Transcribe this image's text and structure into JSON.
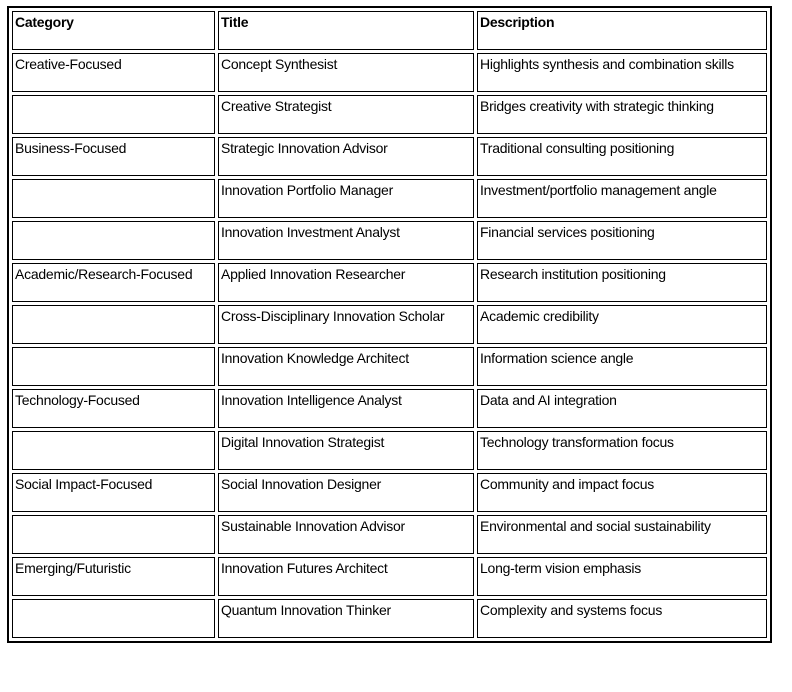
{
  "table": {
    "columns": [
      "Category",
      "Title",
      "Description"
    ],
    "rows": [
      {
        "category": "Creative-Focused",
        "title": "Concept Synthesist",
        "description": "Highlights synthesis and combination skills"
      },
      {
        "category": "",
        "title": "Creative Strategist",
        "description": "Bridges creativity with strategic thinking"
      },
      {
        "category": "Business-Focused",
        "title": "Strategic Innovation Advisor",
        "description": "Traditional consulting positioning"
      },
      {
        "category": "",
        "title": "Innovation Portfolio Manager",
        "description": "Investment/portfolio management angle"
      },
      {
        "category": "",
        "title": "Innovation Investment Analyst",
        "description": "Financial services positioning"
      },
      {
        "category": "Academic/Research-Focused",
        "title": "Applied Innovation Researcher",
        "description": "Research institution positioning"
      },
      {
        "category": "",
        "title": "Cross-Disciplinary Innovation Scholar",
        "description": "Academic credibility"
      },
      {
        "category": "",
        "title": "Innovation Knowledge Architect",
        "description": "Information science angle"
      },
      {
        "category": "Technology-Focused",
        "title": "Innovation Intelligence Analyst",
        "description": "Data and AI integration"
      },
      {
        "category": "",
        "title": "Digital Innovation Strategist",
        "description": "Technology transformation focus"
      },
      {
        "category": "Social Impact-Focused",
        "title": "Social Innovation Designer",
        "description": "Community and impact focus"
      },
      {
        "category": "",
        "title": "Sustainable Innovation Advisor",
        "description": "Environmental and social sustainability"
      },
      {
        "category": "Emerging/Futuristic",
        "title": "Innovation Futures Architect",
        "description": "Long-term vision emphasis"
      },
      {
        "category": "",
        "title": "Quantum Innovation Thinker",
        "description": "Complexity and systems focus"
      }
    ]
  }
}
